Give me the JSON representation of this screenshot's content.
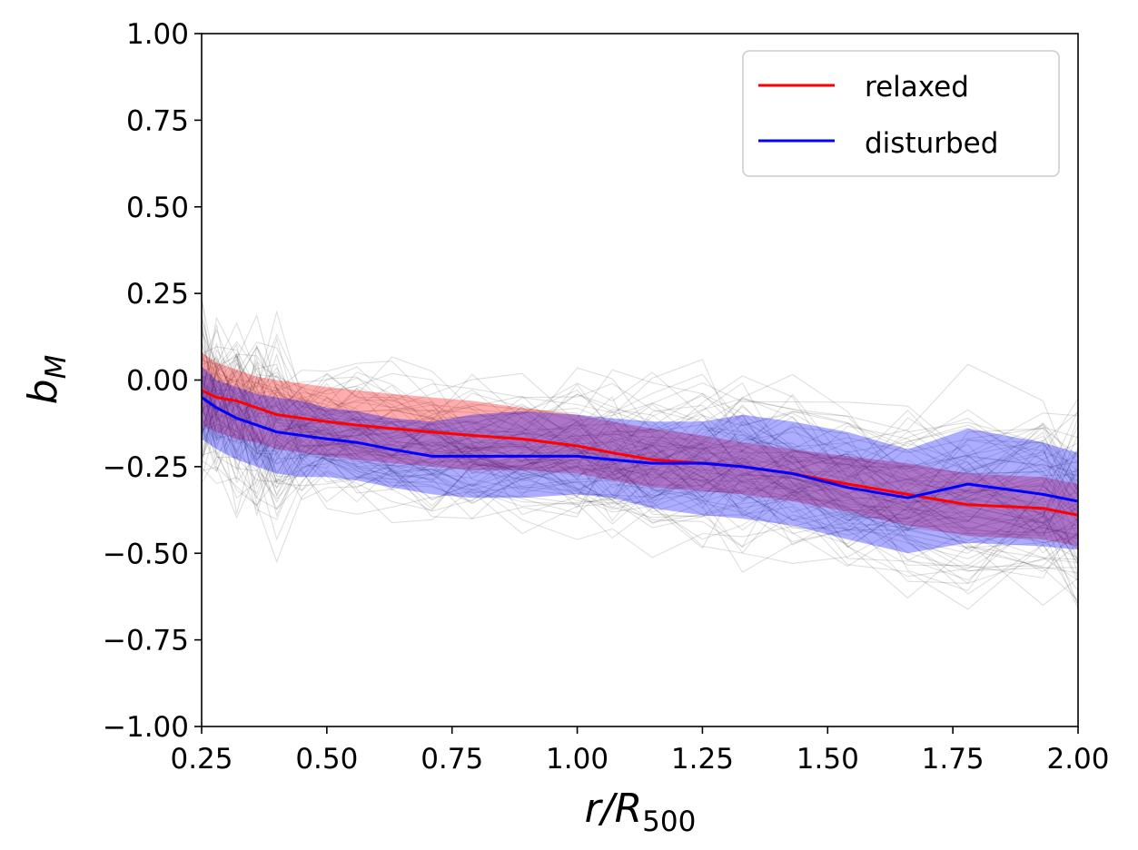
{
  "chart_data": {
    "type": "line",
    "title": "",
    "xlabel": "r/R500",
    "xlabel_parts": {
      "main": "r/R",
      "sub": "500"
    },
    "ylabel": "bM",
    "ylabel_parts": {
      "main": "b",
      "sub": "M"
    },
    "xlim": [
      0.25,
      2.0
    ],
    "ylim": [
      -1.0,
      1.0
    ],
    "xticks": [
      "0.25",
      "0.50",
      "0.75",
      "1.00",
      "1.25",
      "1.50",
      "1.75",
      "2.00"
    ],
    "yticks": [
      "−1.00",
      "−0.75",
      "−0.50",
      "−0.25",
      "0.00",
      "0.25",
      "0.50",
      "0.75",
      "1.00"
    ],
    "legend_position": "top-right",
    "legend": [
      {
        "label": "relaxed",
        "color": "#ff0000"
      },
      {
        "label": "disturbed",
        "color": "#0000ff"
      }
    ],
    "x": [
      0.25,
      0.28,
      0.32,
      0.36,
      0.4,
      0.45,
      0.5,
      0.56,
      0.63,
      0.71,
      0.79,
      0.89,
      1.0,
      1.07,
      1.15,
      1.25,
      1.33,
      1.43,
      1.54,
      1.66,
      1.78,
      1.93,
      2.0
    ],
    "series": [
      {
        "name": "relaxed",
        "color": "#ff0000",
        "values": [
          -0.03,
          -0.05,
          -0.06,
          -0.08,
          -0.1,
          -0.11,
          -0.12,
          -0.13,
          -0.14,
          -0.15,
          -0.16,
          -0.17,
          -0.19,
          -0.21,
          -0.23,
          -0.24,
          -0.25,
          -0.27,
          -0.3,
          -0.33,
          -0.36,
          -0.37,
          -0.39
        ],
        "band_low": [
          -0.13,
          -0.15,
          -0.17,
          -0.18,
          -0.2,
          -0.21,
          -0.22,
          -0.23,
          -0.24,
          -0.25,
          -0.26,
          -0.26,
          -0.27,
          -0.29,
          -0.31,
          -0.32,
          -0.33,
          -0.35,
          -0.38,
          -0.42,
          -0.45,
          -0.46,
          -0.48
        ],
        "band_high": [
          0.08,
          0.05,
          0.03,
          0.01,
          0.0,
          -0.01,
          -0.02,
          -0.03,
          -0.04,
          -0.05,
          -0.06,
          -0.08,
          -0.1,
          -0.12,
          -0.14,
          -0.16,
          -0.18,
          -0.2,
          -0.22,
          -0.24,
          -0.27,
          -0.28,
          -0.3
        ],
        "band_color": "#ff0000"
      },
      {
        "name": "disturbed",
        "color": "#0000ff",
        "values": [
          -0.05,
          -0.08,
          -0.11,
          -0.13,
          -0.15,
          -0.16,
          -0.17,
          -0.18,
          -0.2,
          -0.22,
          -0.22,
          -0.22,
          -0.22,
          -0.23,
          -0.24,
          -0.24,
          -0.25,
          -0.27,
          -0.31,
          -0.34,
          -0.3,
          -0.33,
          -0.35
        ],
        "band_low": [
          -0.17,
          -0.2,
          -0.23,
          -0.25,
          -0.27,
          -0.28,
          -0.28,
          -0.29,
          -0.31,
          -0.33,
          -0.34,
          -0.34,
          -0.33,
          -0.34,
          -0.37,
          -0.39,
          -0.4,
          -0.42,
          -0.46,
          -0.5,
          -0.47,
          -0.48,
          -0.49
        ],
        "band_high": [
          0.04,
          0.0,
          -0.02,
          -0.04,
          -0.05,
          -0.06,
          -0.08,
          -0.09,
          -0.11,
          -0.12,
          -0.1,
          -0.09,
          -0.1,
          -0.11,
          -0.12,
          -0.12,
          -0.1,
          -0.12,
          -0.15,
          -0.2,
          -0.14,
          -0.18,
          -0.21
        ],
        "band_color": "#0000ff"
      }
    ],
    "background_traces": {
      "color": "#000000",
      "count": 90,
      "description_values": "individual cluster profiles shown as faint grey lines",
      "typical_range": [
        -1.0,
        1.0
      ]
    }
  }
}
